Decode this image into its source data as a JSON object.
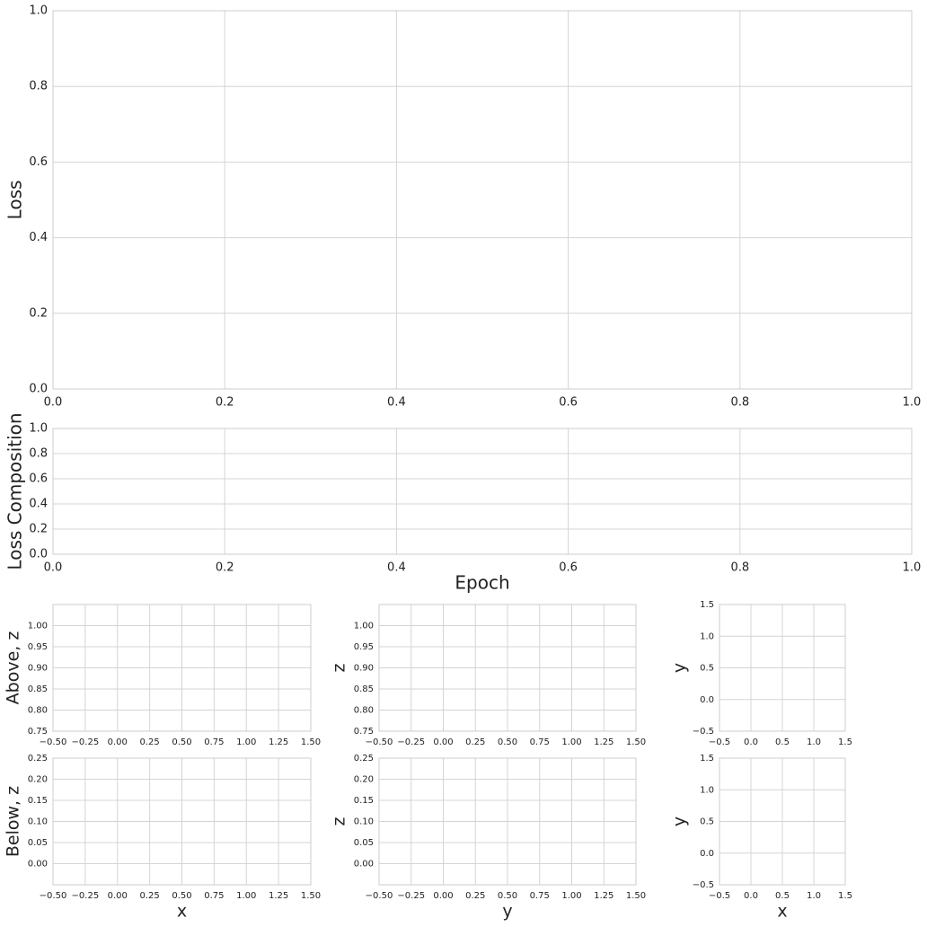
{
  "chart_data": [
    {
      "type": "line",
      "ylabel": "Loss",
      "grid": true,
      "xlim": [
        0,
        1
      ],
      "ylim": [
        0,
        1
      ],
      "xticks": [
        {
          "value": 0,
          "label": "0.0"
        },
        0.2,
        0.4,
        0.6,
        0.8,
        {
          "value": 1,
          "label": "1.0"
        }
      ],
      "yticks": [
        {
          "value": 0,
          "label": "0.0"
        },
        0.2,
        0.4,
        0.6,
        0.8,
        {
          "value": 1,
          "label": "1.0"
        }
      ]
    },
    {
      "type": "line",
      "ylabel": "Loss Composition",
      "xlabel": "Epoch",
      "grid": true,
      "xlim": [
        0,
        1
      ],
      "ylim": [
        0,
        1
      ],
      "xticks": [
        {
          "value": 0,
          "label": "0.0"
        },
        0.2,
        0.4,
        0.6,
        0.8,
        {
          "value": 1,
          "label": "1.0"
        }
      ],
      "yticks": [
        {
          "value": 0,
          "label": "0.0"
        },
        0.2,
        0.4,
        0.6,
        0.8,
        {
          "value": 1,
          "label": "1.0"
        }
      ]
    },
    {
      "type": "line",
      "ylabel": "Above, z",
      "grid": true,
      "xlim": [
        -0.5,
        1.5
      ],
      "ylim": [
        0.75,
        1.05
      ],
      "xticks": [
        {
          "value": -0.5,
          "label": "−0.50"
        },
        {
          "value": -0.25,
          "label": "−0.25"
        },
        {
          "value": 0,
          "label": "0.00"
        },
        0.25,
        {
          "value": 0.5,
          "label": "0.50"
        },
        0.75,
        {
          "value": 1,
          "label": "1.00"
        },
        1.25,
        {
          "value": 1.5,
          "label": "1.50"
        }
      ],
      "yticks": [
        0.75,
        {
          "value": 0.8,
          "label": "0.80"
        },
        0.85,
        {
          "value": 0.9,
          "label": "0.90"
        },
        0.95,
        {
          "value": 1,
          "label": "1.00"
        }
      ]
    },
    {
      "type": "line",
      "ylabel": "z",
      "grid": true,
      "xlim": [
        -0.5,
        1.5
      ],
      "ylim": [
        0.75,
        1.05
      ],
      "xticks": [
        {
          "value": -0.5,
          "label": "−0.50"
        },
        {
          "value": -0.25,
          "label": "−0.25"
        },
        {
          "value": 0,
          "label": "0.00"
        },
        0.25,
        {
          "value": 0.5,
          "label": "0.50"
        },
        0.75,
        {
          "value": 1,
          "label": "1.00"
        },
        1.25,
        {
          "value": 1.5,
          "label": "1.50"
        }
      ],
      "yticks": [
        0.75,
        {
          "value": 0.8,
          "label": "0.80"
        },
        0.85,
        {
          "value": 0.9,
          "label": "0.90"
        },
        0.95,
        {
          "value": 1,
          "label": "1.00"
        }
      ]
    },
    {
      "type": "line",
      "ylabel": "y",
      "grid": true,
      "xlim": [
        -0.5,
        1.5
      ],
      "ylim": [
        -0.5,
        1.5
      ],
      "xticks": [
        {
          "value": -0.5,
          "label": "−0.5"
        },
        {
          "value": 0,
          "label": "0.0"
        },
        0.5,
        {
          "value": 1,
          "label": "1.0"
        },
        1.5
      ],
      "yticks": [
        {
          "value": -0.5,
          "label": "−0.5"
        },
        {
          "value": 0,
          "label": "0.0"
        },
        0.5,
        {
          "value": 1,
          "label": "1.0"
        },
        1.5
      ]
    },
    {
      "type": "line",
      "ylabel": "Below, z",
      "xlabel": "x",
      "grid": true,
      "xlim": [
        -0.5,
        1.5
      ],
      "ylim": [
        -0.05,
        0.25
      ],
      "xticks": [
        {
          "value": -0.5,
          "label": "−0.50"
        },
        {
          "value": -0.25,
          "label": "−0.25"
        },
        {
          "value": 0,
          "label": "0.00"
        },
        0.25,
        {
          "value": 0.5,
          "label": "0.50"
        },
        0.75,
        {
          "value": 1,
          "label": "1.00"
        },
        1.25,
        {
          "value": 1.5,
          "label": "1.50"
        }
      ],
      "yticks": [
        {
          "value": 0,
          "label": "0.00"
        },
        0.05,
        {
          "value": 0.1,
          "label": "0.10"
        },
        0.15,
        {
          "value": 0.2,
          "label": "0.20"
        },
        0.25
      ]
    },
    {
      "type": "line",
      "ylabel": "z",
      "xlabel": "y",
      "grid": true,
      "xlim": [
        -0.5,
        1.5
      ],
      "ylim": [
        -0.05,
        0.25
      ],
      "xticks": [
        {
          "value": -0.5,
          "label": "−0.50"
        },
        {
          "value": -0.25,
          "label": "−0.25"
        },
        {
          "value": 0,
          "label": "0.00"
        },
        0.25,
        {
          "value": 0.5,
          "label": "0.50"
        },
        0.75,
        {
          "value": 1,
          "label": "1.00"
        },
        1.25,
        {
          "value": 1.5,
          "label": "1.50"
        }
      ],
      "yticks": [
        {
          "value": 0,
          "label": "0.00"
        },
        0.05,
        {
          "value": 0.1,
          "label": "0.10"
        },
        0.15,
        {
          "value": 0.2,
          "label": "0.20"
        },
        0.25
      ]
    },
    {
      "type": "line",
      "ylabel": "y",
      "xlabel": "x",
      "grid": true,
      "xlim": [
        -0.5,
        1.5
      ],
      "ylim": [
        -0.5,
        1.5
      ],
      "xticks": [
        {
          "value": -0.5,
          "label": "−0.5"
        },
        {
          "value": 0,
          "label": "0.0"
        },
        0.5,
        {
          "value": 1,
          "label": "1.0"
        },
        1.5
      ],
      "yticks": [
        {
          "value": -0.5,
          "label": "−0.5"
        },
        {
          "value": 0,
          "label": "0.0"
        },
        0.5,
        {
          "value": 1,
          "label": "1.0"
        },
        1.5
      ]
    }
  ]
}
